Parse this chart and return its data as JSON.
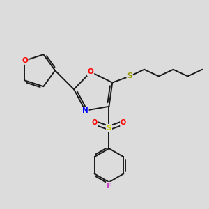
{
  "bg_color": "#dcdcdc",
  "bond_color": "#1a1a1a",
  "atom_colors": {
    "O": "#ff0000",
    "N": "#0000ff",
    "S_sulfonyl": "#cccc00",
    "S_thio": "#999900",
    "F": "#cc44cc",
    "C": "#1a1a1a"
  },
  "figsize": [
    3.0,
    3.0
  ],
  "dpi": 100
}
